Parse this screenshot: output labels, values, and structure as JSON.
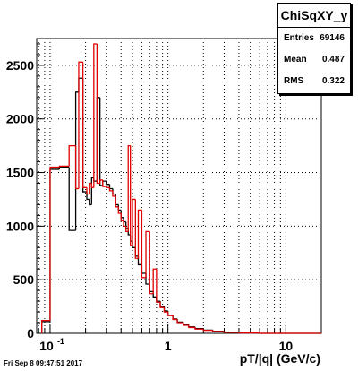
{
  "chart_data": {
    "type": "histogram",
    "title": "ChiSqXY_y",
    "xlabel": "pT/|q| (GeV/c)",
    "ylabel": "",
    "xscale": "log",
    "xlim": [
      0.077,
      20
    ],
    "ylim": [
      0,
      2750
    ],
    "grid": true,
    "x_ticks": [
      {
        "value": 0.1,
        "label": "10^-1"
      },
      {
        "value": 1,
        "label": "1"
      },
      {
        "value": 10,
        "label": "10"
      }
    ],
    "y_ticks": [
      0,
      500,
      1000,
      1500,
      2000,
      2500
    ],
    "series": [
      {
        "color": "#000000",
        "bins": [
          [
            0.085,
            0.1,
            110
          ],
          [
            0.1,
            0.12,
            1530
          ],
          [
            0.12,
            0.145,
            1550
          ],
          [
            0.145,
            0.165,
            960
          ],
          [
            0.165,
            0.175,
            2250
          ],
          [
            0.175,
            0.19,
            2380
          ],
          [
            0.19,
            0.205,
            1320
          ],
          [
            0.205,
            0.215,
            1250
          ],
          [
            0.215,
            0.225,
            1200
          ],
          [
            0.225,
            0.235,
            1450
          ],
          [
            0.235,
            0.25,
            1420
          ],
          [
            0.25,
            0.265,
            2200
          ],
          [
            0.265,
            0.28,
            1380
          ],
          [
            0.28,
            0.3,
            1420
          ],
          [
            0.3,
            0.32,
            1390
          ],
          [
            0.32,
            0.34,
            1350
          ],
          [
            0.34,
            0.36,
            1300
          ],
          [
            0.36,
            0.38,
            1200
          ],
          [
            0.38,
            0.4,
            1150
          ],
          [
            0.4,
            0.42,
            1080
          ],
          [
            0.42,
            0.44,
            1040
          ],
          [
            0.44,
            0.46,
            980
          ],
          [
            0.46,
            0.48,
            920
          ],
          [
            0.48,
            0.5,
            860
          ],
          [
            0.5,
            0.53,
            800
          ],
          [
            0.53,
            0.56,
            720
          ],
          [
            0.56,
            0.6,
            640
          ],
          [
            0.6,
            0.65,
            560
          ],
          [
            0.65,
            0.7,
            460
          ],
          [
            0.7,
            0.75,
            390
          ],
          [
            0.75,
            0.8,
            340
          ],
          [
            0.8,
            0.86,
            300
          ],
          [
            0.86,
            0.93,
            250
          ],
          [
            0.93,
            1.0,
            210
          ],
          [
            1.0,
            1.1,
            170
          ],
          [
            1.1,
            1.2,
            135
          ],
          [
            1.2,
            1.35,
            105
          ],
          [
            1.35,
            1.5,
            80
          ],
          [
            1.5,
            1.7,
            60
          ],
          [
            1.7,
            2.0,
            45
          ],
          [
            2.0,
            2.4,
            30
          ],
          [
            2.4,
            3.0,
            20
          ],
          [
            3.0,
            4.0,
            10
          ],
          [
            4.0,
            6.0,
            4
          ],
          [
            6.0,
            20,
            0
          ]
        ]
      },
      {
        "color": "#e00000",
        "bins": [
          [
            0.085,
            0.1,
            120
          ],
          [
            0.1,
            0.12,
            1550
          ],
          [
            0.12,
            0.145,
            1560
          ],
          [
            0.145,
            0.165,
            1750
          ],
          [
            0.165,
            0.175,
            1350
          ],
          [
            0.175,
            0.19,
            2530
          ],
          [
            0.19,
            0.205,
            1360
          ],
          [
            0.205,
            0.215,
            1300
          ],
          [
            0.215,
            0.225,
            1400
          ],
          [
            0.225,
            0.235,
            1360
          ],
          [
            0.235,
            0.25,
            2700
          ],
          [
            0.25,
            0.265,
            1400
          ],
          [
            0.265,
            0.28,
            1430
          ],
          [
            0.28,
            0.3,
            1370
          ],
          [
            0.3,
            0.32,
            1360
          ],
          [
            0.32,
            0.34,
            1330
          ],
          [
            0.34,
            0.36,
            1280
          ],
          [
            0.36,
            0.38,
            1180
          ],
          [
            0.38,
            0.4,
            1120
          ],
          [
            0.4,
            0.42,
            1050
          ],
          [
            0.42,
            0.44,
            1000
          ],
          [
            0.44,
            0.46,
            950
          ],
          [
            0.46,
            0.48,
            1750
          ],
          [
            0.48,
            0.5,
            820
          ],
          [
            0.5,
            0.53,
            1250
          ],
          [
            0.53,
            0.56,
            700
          ],
          [
            0.56,
            0.6,
            1150
          ],
          [
            0.6,
            0.65,
            520
          ],
          [
            0.65,
            0.7,
            950
          ],
          [
            0.7,
            0.75,
            370
          ],
          [
            0.75,
            0.8,
            600
          ],
          [
            0.8,
            0.86,
            290
          ],
          [
            0.86,
            0.93,
            240
          ],
          [
            0.93,
            1.0,
            200
          ],
          [
            1.0,
            1.1,
            165
          ],
          [
            1.1,
            1.2,
            130
          ],
          [
            1.2,
            1.35,
            100
          ],
          [
            1.35,
            1.5,
            75
          ],
          [
            1.5,
            1.7,
            55
          ],
          [
            1.7,
            2.0,
            40
          ],
          [
            2.0,
            2.4,
            28
          ],
          [
            2.4,
            3.0,
            18
          ],
          [
            3.0,
            4.0,
            9
          ],
          [
            4.0,
            6.0,
            3
          ],
          [
            6.0,
            20,
            0
          ]
        ]
      }
    ]
  },
  "stats": {
    "title": "ChiSqXY_y",
    "rows": [
      {
        "label": "Entries",
        "value": "69146"
      },
      {
        "label": "Mean",
        "value": "0.487"
      },
      {
        "label": "RMS",
        "value": "0.322"
      }
    ]
  },
  "footer": "Fri Sep  8 09:47:51 2017"
}
